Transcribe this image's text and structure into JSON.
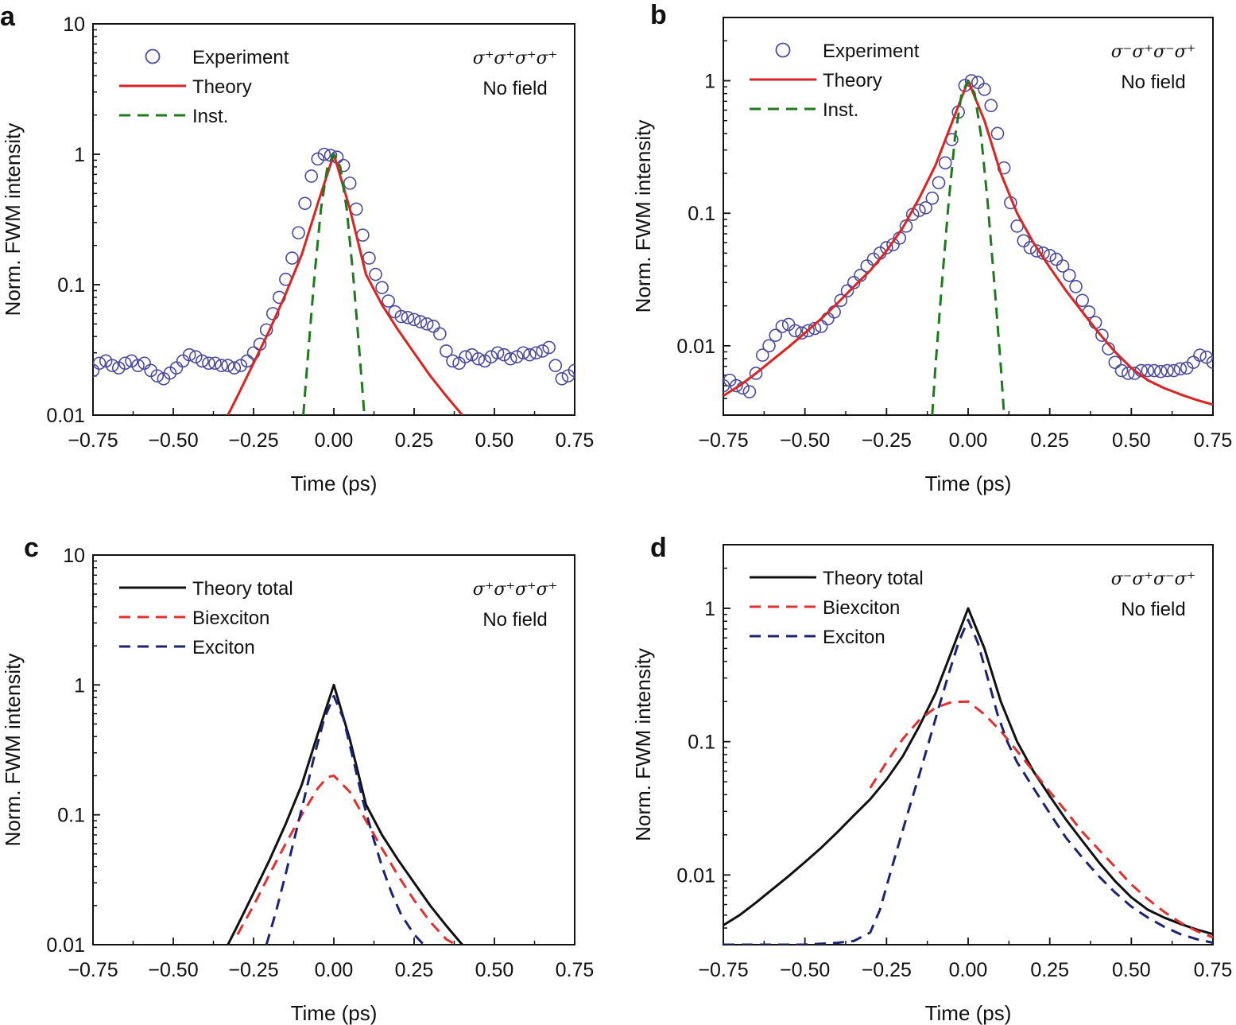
{
  "figure_colors": {
    "experiment_marker": "#4a4a9c",
    "theory_red": "#dd2222",
    "inst_green": "#1f7a1f",
    "total_black": "#111111",
    "biexciton_red": "#e03030",
    "exciton_navy": "#1c2470"
  },
  "chart_data": [
    {
      "id": "a",
      "type": "scatter",
      "panel_label": "a",
      "xlabel": "Time (ps)",
      "ylabel": "Norm. FWM intensity",
      "yscale": "log",
      "xlim": [
        -0.75,
        0.75
      ],
      "ylim": [
        0.01,
        10
      ],
      "x_ticks": [
        -0.75,
        -0.5,
        -0.25,
        0.0,
        0.25,
        0.5,
        0.75
      ],
      "x_tick_labels": [
        "−0.75",
        "−0.50",
        "−0.25",
        "0.00",
        "0.25",
        "0.50",
        "0.75"
      ],
      "y_ticks": [
        0.01,
        0.1,
        1,
        10
      ],
      "y_tick_labels": [
        "0.01",
        "0.1",
        "1",
        "10"
      ],
      "legend_position": "top-left",
      "annotation": {
        "polarization": "σ⁺σ⁺σ⁺σ⁺",
        "condition": "No field"
      },
      "series": [
        {
          "name": "Experiment",
          "kind": "marker",
          "color": "#4a4a9c",
          "x": [
            -0.75,
            -0.73,
            -0.71,
            -0.69,
            -0.67,
            -0.65,
            -0.63,
            -0.61,
            -0.59,
            -0.57,
            -0.55,
            -0.53,
            -0.51,
            -0.49,
            -0.47,
            -0.45,
            -0.43,
            -0.41,
            -0.39,
            -0.37,
            -0.35,
            -0.33,
            -0.31,
            -0.29,
            -0.27,
            -0.25,
            -0.23,
            -0.21,
            -0.19,
            -0.17,
            -0.15,
            -0.13,
            -0.11,
            -0.09,
            -0.07,
            -0.05,
            -0.03,
            -0.01,
            0.01,
            0.03,
            0.05,
            0.07,
            0.09,
            0.11,
            0.13,
            0.15,
            0.17,
            0.19,
            0.21,
            0.23,
            0.25,
            0.27,
            0.29,
            0.31,
            0.33,
            0.35,
            0.37,
            0.39,
            0.41,
            0.43,
            0.45,
            0.47,
            0.49,
            0.51,
            0.53,
            0.55,
            0.57,
            0.59,
            0.61,
            0.63,
            0.65,
            0.67,
            0.69,
            0.71,
            0.73,
            0.75
          ],
          "y": [
            0.022,
            0.025,
            0.026,
            0.024,
            0.023,
            0.025,
            0.026,
            0.024,
            0.025,
            0.022,
            0.02,
            0.019,
            0.021,
            0.023,
            0.026,
            0.029,
            0.028,
            0.026,
            0.025,
            0.025,
            0.024,
            0.024,
            0.023,
            0.024,
            0.026,
            0.03,
            0.035,
            0.045,
            0.06,
            0.08,
            0.11,
            0.16,
            0.25,
            0.42,
            0.68,
            0.92,
            1.0,
            0.98,
            0.95,
            0.82,
            0.6,
            0.38,
            0.24,
            0.16,
            0.12,
            0.095,
            0.075,
            0.062,
            0.057,
            0.056,
            0.054,
            0.052,
            0.05,
            0.048,
            0.042,
            0.031,
            0.026,
            0.025,
            0.028,
            0.029,
            0.027,
            0.026,
            0.028,
            0.03,
            0.029,
            0.027,
            0.028,
            0.03,
            0.029,
            0.03,
            0.031,
            0.033,
            0.024,
            0.019,
            0.02,
            0.022
          ]
        },
        {
          "name": "Theory",
          "kind": "line",
          "color": "#dd2222",
          "dash": "solid",
          "x": [
            -0.33,
            -0.3,
            -0.25,
            -0.2,
            -0.15,
            -0.1,
            -0.05,
            0.0,
            0.05,
            0.1,
            0.15,
            0.2,
            0.25,
            0.3,
            0.35,
            0.4
          ],
          "y": [
            0.01,
            0.014,
            0.025,
            0.045,
            0.085,
            0.17,
            0.42,
            1.0,
            0.38,
            0.12,
            0.07,
            0.045,
            0.03,
            0.02,
            0.014,
            0.01
          ]
        },
        {
          "name": "Inst.",
          "kind": "line",
          "color": "#1f7a1f",
          "dash": "dashed",
          "x": [
            -0.095,
            -0.08,
            -0.06,
            -0.04,
            -0.02,
            0.0,
            0.02,
            0.04,
            0.06,
            0.08,
            0.095
          ],
          "y": [
            0.01,
            0.03,
            0.12,
            0.38,
            0.8,
            1.0,
            0.8,
            0.38,
            0.12,
            0.03,
            0.01
          ]
        }
      ]
    },
    {
      "id": "b",
      "type": "scatter",
      "panel_label": "b",
      "xlabel": "Time (ps)",
      "ylabel": "Norm. FWM intensity",
      "yscale": "log",
      "xlim": [
        -0.75,
        0.75
      ],
      "ylim": [
        0.003,
        3
      ],
      "x_ticks": [
        -0.75,
        -0.5,
        -0.25,
        0.0,
        0.25,
        0.5,
        0.75
      ],
      "x_tick_labels": [
        "−0.75",
        "−0.50",
        "−0.25",
        "0.00",
        "0.25",
        "0.50",
        "0.75"
      ],
      "y_ticks": [
        0.01,
        0.1,
        1
      ],
      "y_tick_labels": [
        "0.01",
        "0.1",
        "1"
      ],
      "legend_position": "top-left",
      "annotation": {
        "polarization": "σ⁻σ⁺σ⁻σ⁺",
        "condition": "No field"
      },
      "series": [
        {
          "name": "Experiment",
          "kind": "marker",
          "color": "#4a4a9c",
          "x": [
            -0.75,
            -0.73,
            -0.71,
            -0.69,
            -0.67,
            -0.65,
            -0.63,
            -0.61,
            -0.59,
            -0.57,
            -0.55,
            -0.53,
            -0.51,
            -0.49,
            -0.47,
            -0.45,
            -0.43,
            -0.41,
            -0.39,
            -0.37,
            -0.35,
            -0.33,
            -0.31,
            -0.29,
            -0.27,
            -0.25,
            -0.23,
            -0.21,
            -0.19,
            -0.17,
            -0.15,
            -0.13,
            -0.11,
            -0.09,
            -0.07,
            -0.05,
            -0.03,
            -0.01,
            0.01,
            0.03,
            0.05,
            0.07,
            0.09,
            0.11,
            0.13,
            0.15,
            0.17,
            0.19,
            0.21,
            0.23,
            0.25,
            0.27,
            0.29,
            0.31,
            0.33,
            0.35,
            0.37,
            0.39,
            0.41,
            0.43,
            0.45,
            0.47,
            0.49,
            0.51,
            0.53,
            0.55,
            0.57,
            0.59,
            0.61,
            0.63,
            0.65,
            0.67,
            0.69,
            0.71,
            0.73,
            0.75
          ],
          "y": [
            0.005,
            0.0055,
            0.005,
            0.0048,
            0.0045,
            0.0062,
            0.0085,
            0.01,
            0.012,
            0.014,
            0.0145,
            0.013,
            0.0125,
            0.013,
            0.0135,
            0.014,
            0.016,
            0.018,
            0.022,
            0.026,
            0.03,
            0.034,
            0.04,
            0.045,
            0.05,
            0.055,
            0.058,
            0.065,
            0.08,
            0.098,
            0.105,
            0.11,
            0.13,
            0.17,
            0.24,
            0.36,
            0.58,
            0.92,
            1.0,
            0.97,
            0.86,
            0.65,
            0.4,
            0.22,
            0.12,
            0.08,
            0.062,
            0.055,
            0.052,
            0.05,
            0.048,
            0.045,
            0.04,
            0.034,
            0.028,
            0.022,
            0.018,
            0.015,
            0.012,
            0.0095,
            0.0075,
            0.0065,
            0.0062,
            0.0062,
            0.0065,
            0.0065,
            0.0065,
            0.0064,
            0.0065,
            0.0065,
            0.0067,
            0.0068,
            0.0075,
            0.0085,
            0.0082,
            0.0075
          ]
        },
        {
          "name": "Theory",
          "kind": "line",
          "color": "#dd2222",
          "dash": "solid",
          "x": [
            -0.75,
            -0.7,
            -0.65,
            -0.6,
            -0.55,
            -0.5,
            -0.45,
            -0.4,
            -0.35,
            -0.3,
            -0.25,
            -0.2,
            -0.15,
            -0.1,
            -0.05,
            0.0,
            0.05,
            0.1,
            0.15,
            0.2,
            0.25,
            0.3,
            0.35,
            0.4,
            0.45,
            0.5,
            0.55,
            0.6,
            0.65,
            0.7,
            0.75
          ],
          "y": [
            0.0042,
            0.005,
            0.0062,
            0.0078,
            0.0098,
            0.0125,
            0.016,
            0.021,
            0.028,
            0.037,
            0.052,
            0.078,
            0.13,
            0.23,
            0.48,
            1.0,
            0.5,
            0.2,
            0.1,
            0.06,
            0.039,
            0.026,
            0.018,
            0.0125,
            0.009,
            0.0068,
            0.0055,
            0.0048,
            0.0043,
            0.0039,
            0.0036
          ]
        },
        {
          "name": "Inst.",
          "kind": "line",
          "color": "#1f7a1f",
          "dash": "dashed",
          "x": [
            -0.11,
            -0.1,
            -0.08,
            -0.06,
            -0.04,
            -0.02,
            0.0,
            0.02,
            0.04,
            0.06,
            0.08,
            0.1,
            0.11
          ],
          "y": [
            0.003,
            0.007,
            0.03,
            0.12,
            0.38,
            0.8,
            1.0,
            0.8,
            0.38,
            0.12,
            0.03,
            0.007,
            0.003
          ]
        }
      ]
    },
    {
      "id": "c",
      "type": "line",
      "panel_label": "c",
      "xlabel": "Time (ps)",
      "ylabel": "Norm. FWM intensity",
      "yscale": "log",
      "xlim": [
        -0.75,
        0.75
      ],
      "ylim": [
        0.01,
        10
      ],
      "x_ticks": [
        -0.75,
        -0.5,
        -0.25,
        0.0,
        0.25,
        0.5,
        0.75
      ],
      "x_tick_labels": [
        "−0.75",
        "−0.50",
        "−0.25",
        "0.00",
        "0.25",
        "0.50",
        "0.75"
      ],
      "y_ticks": [
        0.01,
        0.1,
        1,
        10
      ],
      "y_tick_labels": [
        "0.01",
        "0.1",
        "1",
        "10"
      ],
      "legend_position": "top-left",
      "annotation": {
        "polarization": "σ⁺σ⁺σ⁺σ⁺",
        "condition": "No field"
      },
      "series": [
        {
          "name": "Theory total",
          "kind": "line",
          "color": "#111111",
          "dash": "solid",
          "x": [
            -0.33,
            -0.3,
            -0.25,
            -0.2,
            -0.15,
            -0.1,
            -0.05,
            0.0,
            0.05,
            0.1,
            0.15,
            0.2,
            0.25,
            0.3,
            0.35,
            0.4
          ],
          "y": [
            0.01,
            0.014,
            0.025,
            0.045,
            0.085,
            0.17,
            0.42,
            1.0,
            0.38,
            0.12,
            0.07,
            0.045,
            0.03,
            0.02,
            0.014,
            0.01
          ]
        },
        {
          "name": "Biexciton",
          "kind": "line",
          "color": "#e03030",
          "dash": "dashed",
          "x": [
            -0.3,
            -0.25,
            -0.2,
            -0.15,
            -0.1,
            -0.05,
            -0.02,
            0.0,
            0.05,
            0.1,
            0.15,
            0.2,
            0.25,
            0.3,
            0.35,
            0.38
          ],
          "y": [
            0.012,
            0.02,
            0.035,
            0.06,
            0.1,
            0.16,
            0.195,
            0.2,
            0.15,
            0.09,
            0.055,
            0.034,
            0.022,
            0.015,
            0.011,
            0.01
          ]
        },
        {
          "name": "Exciton",
          "kind": "line",
          "color": "#1c2470",
          "dash": "dashed",
          "x": [
            -0.21,
            -0.18,
            -0.15,
            -0.12,
            -0.09,
            -0.06,
            -0.03,
            0.0,
            0.03,
            0.06,
            0.09,
            0.12,
            0.15,
            0.18,
            0.21,
            0.25,
            0.28
          ],
          "y": [
            0.01,
            0.018,
            0.035,
            0.07,
            0.14,
            0.29,
            0.55,
            0.82,
            0.55,
            0.27,
            0.13,
            0.07,
            0.04,
            0.025,
            0.017,
            0.012,
            0.01
          ]
        }
      ]
    },
    {
      "id": "d",
      "type": "line",
      "panel_label": "d",
      "xlabel": "Time (ps)",
      "ylabel": "Norm. FWM intensity",
      "yscale": "log",
      "xlim": [
        -0.75,
        0.75
      ],
      "ylim": [
        0.003,
        3
      ],
      "x_ticks": [
        -0.75,
        -0.5,
        -0.25,
        0.0,
        0.25,
        0.5,
        0.75
      ],
      "x_tick_labels": [
        "−0.75",
        "−0.50",
        "−0.25",
        "0.00",
        "0.25",
        "0.50",
        "0.75"
      ],
      "y_ticks": [
        0.01,
        0.1,
        1
      ],
      "y_tick_labels": [
        "0.01",
        "0.1",
        "1"
      ],
      "legend_position": "top-left",
      "annotation": {
        "polarization": "σ⁻σ⁺σ⁻σ⁺",
        "condition": "No field"
      },
      "series": [
        {
          "name": "Theory total",
          "kind": "line",
          "color": "#111111",
          "dash": "solid",
          "x": [
            -0.75,
            -0.7,
            -0.65,
            -0.6,
            -0.55,
            -0.5,
            -0.45,
            -0.4,
            -0.35,
            -0.3,
            -0.25,
            -0.2,
            -0.15,
            -0.1,
            -0.05,
            0.0,
            0.05,
            0.1,
            0.15,
            0.2,
            0.25,
            0.3,
            0.35,
            0.4,
            0.45,
            0.5,
            0.55,
            0.6,
            0.65,
            0.7,
            0.75
          ],
          "y": [
            0.0042,
            0.005,
            0.0062,
            0.0078,
            0.0098,
            0.0125,
            0.016,
            0.021,
            0.028,
            0.037,
            0.052,
            0.078,
            0.13,
            0.23,
            0.48,
            1.0,
            0.5,
            0.2,
            0.1,
            0.06,
            0.039,
            0.026,
            0.018,
            0.0125,
            0.009,
            0.0068,
            0.0055,
            0.0048,
            0.0043,
            0.0039,
            0.0036
          ]
        },
        {
          "name": "Biexciton",
          "kind": "line",
          "color": "#e03030",
          "dash": "dashed",
          "x": [
            -0.3,
            -0.25,
            -0.2,
            -0.15,
            -0.1,
            -0.05,
            0.0,
            0.05,
            0.1,
            0.15,
            0.2,
            0.25,
            0.3,
            0.35,
            0.4,
            0.45,
            0.5,
            0.55,
            0.6,
            0.65,
            0.7,
            0.75
          ],
          "y": [
            0.045,
            0.07,
            0.105,
            0.145,
            0.18,
            0.198,
            0.2,
            0.16,
            0.12,
            0.085,
            0.06,
            0.042,
            0.03,
            0.021,
            0.0155,
            0.0115,
            0.0085,
            0.0066,
            0.0053,
            0.0044,
            0.0038,
            0.0034
          ]
        },
        {
          "name": "Exciton",
          "kind": "line",
          "color": "#1c2470",
          "dash": "dashed",
          "x": [
            -0.75,
            -0.5,
            -0.4,
            -0.35,
            -0.3,
            -0.27,
            -0.24,
            -0.21,
            -0.18,
            -0.15,
            -0.12,
            -0.09,
            -0.06,
            -0.03,
            0.0,
            0.03,
            0.06,
            0.09,
            0.12,
            0.15,
            0.2,
            0.25,
            0.3,
            0.35,
            0.4,
            0.45,
            0.5,
            0.55,
            0.6,
            0.65,
            0.7,
            0.75
          ],
          "y": [
            0.003,
            0.003,
            0.0031,
            0.0032,
            0.0037,
            0.0055,
            0.01,
            0.018,
            0.032,
            0.056,
            0.1,
            0.18,
            0.32,
            0.55,
            0.82,
            0.55,
            0.3,
            0.16,
            0.1,
            0.07,
            0.045,
            0.029,
            0.019,
            0.0135,
            0.0098,
            0.0074,
            0.0058,
            0.0048,
            0.0041,
            0.0036,
            0.0033,
            0.0031
          ]
        }
      ]
    }
  ]
}
